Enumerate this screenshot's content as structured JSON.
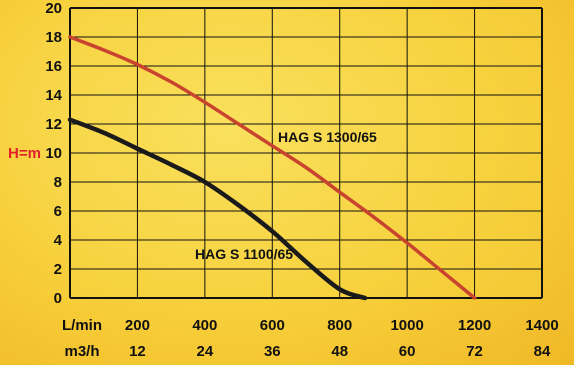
{
  "chart_data": {
    "type": "line",
    "ylabel": "H=m",
    "ylim": [
      0,
      20
    ],
    "yticks": [
      "0",
      "2",
      "4",
      "6",
      "8",
      "10",
      "12",
      "14",
      "16",
      "18",
      "20"
    ],
    "xlim": [
      0,
      1400
    ],
    "x_axis_rows": [
      {
        "unit": "L/min",
        "ticks": [
          "200",
          "400",
          "600",
          "800",
          "1000",
          "1200",
          "1400"
        ]
      },
      {
        "unit": "m3/h",
        "ticks": [
          "12",
          "24",
          "36",
          "48",
          "60",
          "72",
          "84"
        ]
      }
    ],
    "grid": true,
    "series": [
      {
        "name": "HAG S 1300/65",
        "color": "#c8442e",
        "x": [
          0,
          100,
          200,
          300,
          400,
          500,
          600,
          700,
          800,
          900,
          1000,
          1100,
          1200
        ],
        "y": [
          18,
          17.1,
          16.1,
          14.9,
          13.5,
          12,
          10.5,
          9,
          7.3,
          5.6,
          3.8,
          1.9,
          0
        ]
      },
      {
        "name": "HAG S 1100/65",
        "color": "#1a1a1a",
        "x": [
          0,
          100,
          200,
          300,
          400,
          500,
          600,
          700,
          800,
          875
        ],
        "y": [
          12.3,
          11.4,
          10.3,
          9.2,
          8,
          6.4,
          4.6,
          2.5,
          0.6,
          0
        ]
      }
    ]
  }
}
